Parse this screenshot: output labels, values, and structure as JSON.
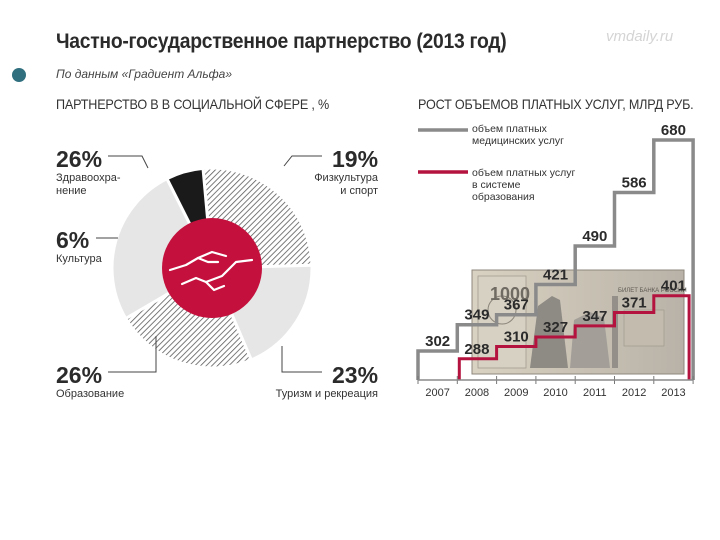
{
  "title": "Частно-государственное партнерство (2013 год)",
  "watermark": "vmdaily.ru",
  "source": "По данным «Градиент Альфа»",
  "chart_data": [
    {
      "type": "pie",
      "title": "ПАРТНЕРСТВО В В СОЦИАЛЬНОЙ СФЕРЕ , %",
      "slices": [
        {
          "label": "Здравоохра-\nнение",
          "value": 26,
          "pct": "26%"
        },
        {
          "label": "Физкультура\nи спорт",
          "value": 19,
          "pct": "19%"
        },
        {
          "label": "Туризм и рекреация",
          "value": 23,
          "pct": "23%"
        },
        {
          "label": "Образование",
          "value": 26,
          "pct": "26%"
        },
        {
          "label": "Культура",
          "value": 6,
          "pct": "6%"
        }
      ],
      "colors": {
        "hatch": "#555555",
        "light": "#e6e6e6",
        "dark": "#1a1a1a",
        "center": "#c4103c"
      }
    },
    {
      "type": "line",
      "title": "РОСТ ОБЪЕМОВ ПЛАТНЫХ УСЛУГ, МЛРД РУБ.",
      "categories": [
        "2007",
        "2008",
        "2009",
        "2010",
        "2011",
        "2012",
        "2013"
      ],
      "series": [
        {
          "name": "объем платных\nмедицинских услуг",
          "values": [
            302,
            349,
            367,
            421,
            490,
            586,
            680
          ],
          "color": "#8a8a8a"
        },
        {
          "name": "объем платных услуг\nв системе\nобразования",
          "values": [
            null,
            288,
            310,
            327,
            347,
            371,
            401
          ],
          "color": "#b5133f"
        }
      ],
      "ylim": [
        250,
        700
      ]
    }
  ]
}
